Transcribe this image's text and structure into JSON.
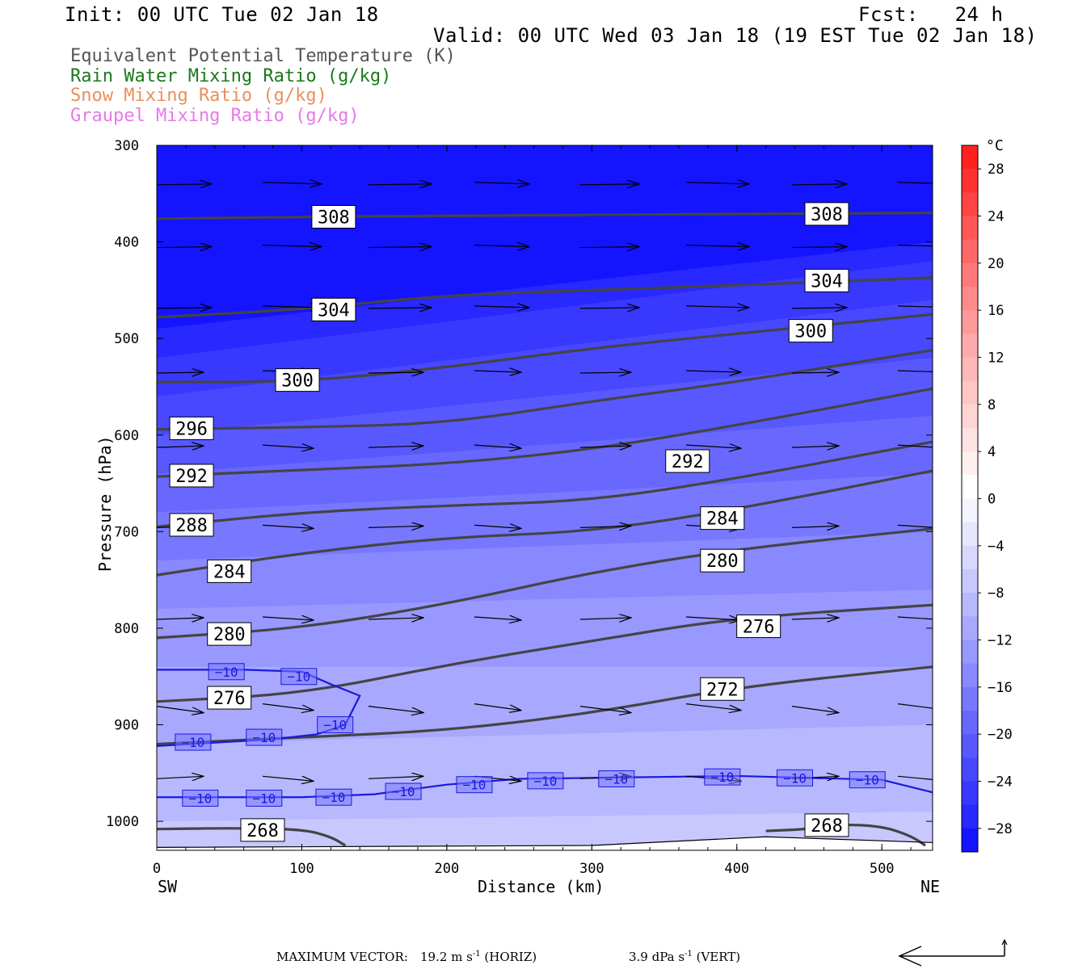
{
  "header": {
    "init": "Init: 00 UTC Tue 02 Jan 18",
    "fcst": "Fcst:   24 h",
    "valid": "Valid: 00 UTC Wed 03 Jan 18 (19 EST Tue 02 Jan 18)"
  },
  "legend": [
    {
      "text": "Equivalent Potential Temperature (K)",
      "color": "#555555"
    },
    {
      "text": "Rain Water Mixing Ratio (g/kg)",
      "color": "#1a7a1a"
    },
    {
      "text": "Snow Mixing Ratio (g/kg)",
      "color": "#e8905a"
    },
    {
      "text": "Graupel Mixing Ratio (g/kg)",
      "color": "#e67ae6"
    }
  ],
  "footer": {
    "max_vector_label": "MAXIMUM VECTOR:",
    "horiz_value": "19.2 m s",
    "horiz_exp": "-1",
    "horiz_unit": "(HORIZ)",
    "vert_value": "3.9 dPa s",
    "vert_exp": "-1",
    "vert_unit": "(VERT)"
  },
  "chart_data": {
    "type": "heatmap",
    "xlabel": "Distance (km)",
    "ylabel": "Pressure (hPa)",
    "x_ticks": [
      0,
      100,
      200,
      300,
      400,
      500
    ],
    "y_ticks": [
      300,
      400,
      500,
      600,
      700,
      800,
      900,
      1000
    ],
    "xlim": [
      0,
      535
    ],
    "ylim": [
      300,
      1030
    ],
    "y_reversed": true,
    "x_end_labels": {
      "left": "SW",
      "right": "NE"
    },
    "colorbar": {
      "unit": "°C",
      "ticks": [
        28,
        24,
        20,
        16,
        12,
        8,
        4,
        0,
        -4,
        -8,
        -12,
        -16,
        -20,
        -24,
        -28
      ],
      "tick_labels": [
        "28",
        "24",
        "20",
        "16",
        "12",
        "8",
        "4",
        "0",
        "−4",
        "−8",
        "−12",
        "−16",
        "−20",
        "−24",
        "−28"
      ],
      "bands": [
        {
          "from": 30,
          "to": 28,
          "color": "#ff2020"
        },
        {
          "from": 28,
          "to": 26,
          "color": "#ff3232"
        },
        {
          "from": 26,
          "to": 24,
          "color": "#ff4444"
        },
        {
          "from": 24,
          "to": 22,
          "color": "#ff5656"
        },
        {
          "from": 22,
          "to": 20,
          "color": "#ff6868"
        },
        {
          "from": 20,
          "to": 18,
          "color": "#ff7a7a"
        },
        {
          "from": 18,
          "to": 16,
          "color": "#ff8a8a"
        },
        {
          "from": 16,
          "to": 14,
          "color": "#ff9a9a"
        },
        {
          "from": 14,
          "to": 12,
          "color": "#ffaaaa"
        },
        {
          "from": 12,
          "to": 10,
          "color": "#ffb8b8"
        },
        {
          "from": 10,
          "to": 8,
          "color": "#ffc6c6"
        },
        {
          "from": 8,
          "to": 6,
          "color": "#ffd4d4"
        },
        {
          "from": 6,
          "to": 4,
          "color": "#ffe2e2"
        },
        {
          "from": 4,
          "to": 2,
          "color": "#fff0f0"
        },
        {
          "from": 2,
          "to": 0,
          "color": "#ffffff"
        },
        {
          "from": 0,
          "to": -2,
          "color": "#f4f4ff"
        },
        {
          "from": -2,
          "to": -4,
          "color": "#e6e6ff"
        },
        {
          "from": -4,
          "to": -6,
          "color": "#d8d8ff"
        },
        {
          "from": -6,
          "to": -8,
          "color": "#c8c8ff"
        },
        {
          "from": -8,
          "to": -10,
          "color": "#b8b8ff"
        },
        {
          "from": -10,
          "to": -12,
          "color": "#a8a8ff"
        },
        {
          "from": -12,
          "to": -14,
          "color": "#9898ff"
        },
        {
          "from": -14,
          "to": -16,
          "color": "#8888ff"
        },
        {
          "from": -16,
          "to": -18,
          "color": "#7878ff"
        },
        {
          "from": -18,
          "to": -20,
          "color": "#6868ff"
        },
        {
          "from": -20,
          "to": -22,
          "color": "#5858ff"
        },
        {
          "from": -22,
          "to": -24,
          "color": "#4848ff"
        },
        {
          "from": -24,
          "to": -26,
          "color": "#3838ff"
        },
        {
          "from": -26,
          "to": -28,
          "color": "#2828ff"
        },
        {
          "from": -28,
          "to": -30,
          "color": "#1414ff"
        }
      ]
    },
    "temperature_field": {
      "description_levels_hpa": [
        300,
        1030
      ],
      "bands": [
        {
          "temp": -30,
          "x": [
            0,
            535
          ],
          "p_top": [
            300,
            300
          ],
          "p_bot": [
            490,
            400
          ]
        },
        {
          "temp": -28,
          "x": [
            0,
            535
          ],
          "p_top": [
            490,
            400
          ],
          "p_bot": [
            520,
            420
          ]
        },
        {
          "temp": -26,
          "x": [
            0,
            535
          ],
          "p_top": [
            520,
            420
          ],
          "p_bot": [
            560,
            460
          ]
        },
        {
          "temp": -24,
          "x": [
            0,
            535
          ],
          "p_top": [
            560,
            460
          ],
          "p_bot": [
            600,
            520
          ]
        },
        {
          "temp": -22,
          "x": [
            0,
            535
          ],
          "p_top": [
            600,
            520
          ],
          "p_bot": [
            640,
            580
          ]
        },
        {
          "temp": -20,
          "x": [
            0,
            535
          ],
          "p_top": [
            640,
            580
          ],
          "p_bot": [
            680,
            640
          ]
        },
        {
          "temp": -18,
          "x": [
            0,
            535
          ],
          "p_top": [
            680,
            640
          ],
          "p_bot": [
            730,
            700
          ]
        },
        {
          "temp": -16,
          "x": [
            0,
            535
          ],
          "p_top": [
            730,
            700
          ],
          "p_bot": [
            780,
            760
          ]
        },
        {
          "temp": -14,
          "x": [
            0,
            535
          ],
          "p_top": [
            780,
            760
          ],
          "p_bot": [
            840,
            840
          ]
        },
        {
          "temp": -12,
          "x": [
            0,
            535
          ],
          "p_top": [
            840,
            840
          ],
          "p_bot": [
            920,
            900
          ]
        },
        {
          "temp": -10,
          "x": [
            0,
            535
          ],
          "p_top": [
            920,
            900
          ],
          "p_bot": [
            1000,
            990
          ]
        },
        {
          "temp": -8,
          "x": [
            0,
            535
          ],
          "p_top": [
            1000,
            990
          ],
          "p_bot": [
            1030,
            1030
          ]
        }
      ]
    },
    "theta_e_contours": [
      {
        "level": 308,
        "x": [
          0,
          100,
          200,
          300,
          400,
          535
        ],
        "p": [
          376,
          374,
          373,
          372,
          371,
          370
        ],
        "labels": [
          {
            "x": 122,
            "p": 374
          },
          {
            "x": 462,
            "p": 371
          }
        ]
      },
      {
        "level": 304,
        "x": [
          0,
          100,
          200,
          300,
          400,
          535
        ],
        "p": [
          478,
          470,
          455,
          450,
          445,
          437
        ],
        "labels": [
          {
            "x": 122,
            "p": 470
          },
          {
            "x": 462,
            "p": 440
          }
        ]
      },
      {
        "level": 300,
        "x": [
          0,
          100,
          200,
          300,
          400,
          535
        ],
        "p": [
          545,
          545,
          530,
          510,
          495,
          475
        ],
        "labels": [
          {
            "x": 97,
            "p": 543
          },
          {
            "x": 451,
            "p": 492
          }
        ]
      },
      {
        "level": 296,
        "x": [
          0,
          100,
          200,
          300,
          400,
          535
        ],
        "p": [
          594,
          592,
          588,
          565,
          545,
          512
        ],
        "labels": [
          {
            "x": 24,
            "p": 593
          }
        ]
      },
      {
        "level": 292,
        "x": [
          0,
          100,
          200,
          300,
          400,
          535
        ],
        "p": [
          643,
          636,
          630,
          615,
          590,
          552
        ],
        "labels": [
          {
            "x": 24,
            "p": 642
          },
          {
            "x": 366,
            "p": 627
          }
        ]
      },
      {
        "level": 288,
        "x": [
          0,
          100,
          200,
          300,
          400,
          535
        ],
        "p": [
          695,
          680,
          673,
          668,
          645,
          607
        ],
        "labels": [
          {
            "x": 24,
            "p": 693
          }
        ]
      },
      {
        "level": 284,
        "x": [
          0,
          100,
          200,
          300,
          400,
          535
        ],
        "p": [
          745,
          722,
          706,
          700,
          677,
          637
        ],
        "labels": [
          {
            "x": 50,
            "p": 741
          },
          {
            "x": 390,
            "p": 686
          }
        ]
      },
      {
        "level": 280,
        "x": [
          0,
          100,
          200,
          300,
          400,
          535
        ],
        "p": [
          810,
          800,
          775,
          742,
          718,
          697
        ],
        "labels": [
          {
            "x": 50,
            "p": 806
          },
          {
            "x": 390,
            "p": 730
          }
        ]
      },
      {
        "level": 276,
        "x": [
          0,
          100,
          200,
          300,
          400,
          535
        ],
        "p": [
          876,
          868,
          838,
          813,
          789,
          776
        ],
        "labels": [
          {
            "x": 50,
            "p": 872
          },
          {
            "x": 415,
            "p": 798
          }
        ]
      },
      {
        "level": 272,
        "x": [
          0,
          100,
          200,
          300,
          400,
          535
        ],
        "p": [
          920,
          913,
          906,
          888,
          861,
          840
        ],
        "labels": [
          {
            "x": 390,
            "p": 863
          }
        ]
      },
      {
        "level": 268,
        "x": [
          0,
          50,
          100,
          120,
          130
        ],
        "p": [
          1008,
          1007,
          1008,
          1016,
          1025
        ],
        "labels": [
          {
            "x": 73,
            "p": 1009
          }
        ]
      },
      {
        "level": 268,
        "x": [
          420,
          450,
          470,
          500,
          520,
          530
        ],
        "p": [
          1010,
          1008,
          1003,
          1005,
          1015,
          1025
        ],
        "labels": [
          {
            "x": 462,
            "p": 1004
          }
        ]
      }
    ],
    "minus10_isotherm": [
      {
        "x": [
          0,
          60,
          100,
          120,
          140,
          130,
          110,
          80,
          0
        ],
        "p": [
          843,
          843,
          845,
          858,
          870,
          900,
          910,
          915,
          922
        ],
        "labels": [
          {
            "x": 48,
            "p": 845
          },
          {
            "x": 98,
            "p": 850
          },
          {
            "x": 123,
            "p": 900
          },
          {
            "x": 25,
            "p": 918
          },
          {
            "x": 74,
            "p": 913
          }
        ]
      },
      {
        "x": [
          0,
          100,
          150,
          200,
          250,
          300,
          400,
          500,
          535
        ],
        "p": [
          975,
          975,
          972,
          962,
          956,
          955,
          953,
          957,
          970
        ],
        "labels": [
          {
            "x": 30,
            "p": 976
          },
          {
            "x": 74,
            "p": 976
          },
          {
            "x": 122,
            "p": 975
          },
          {
            "x": 170,
            "p": 969
          },
          {
            "x": 219,
            "p": 962
          },
          {
            "x": 268,
            "p": 958
          },
          {
            "x": 317,
            "p": 956
          },
          {
            "x": 390,
            "p": 954
          },
          {
            "x": 440,
            "p": 955
          },
          {
            "x": 490,
            "p": 957
          }
        ]
      }
    ],
    "wind_vectors_note": "horizontal circulation vectors, generally SW to NE, shown as arrows"
  }
}
